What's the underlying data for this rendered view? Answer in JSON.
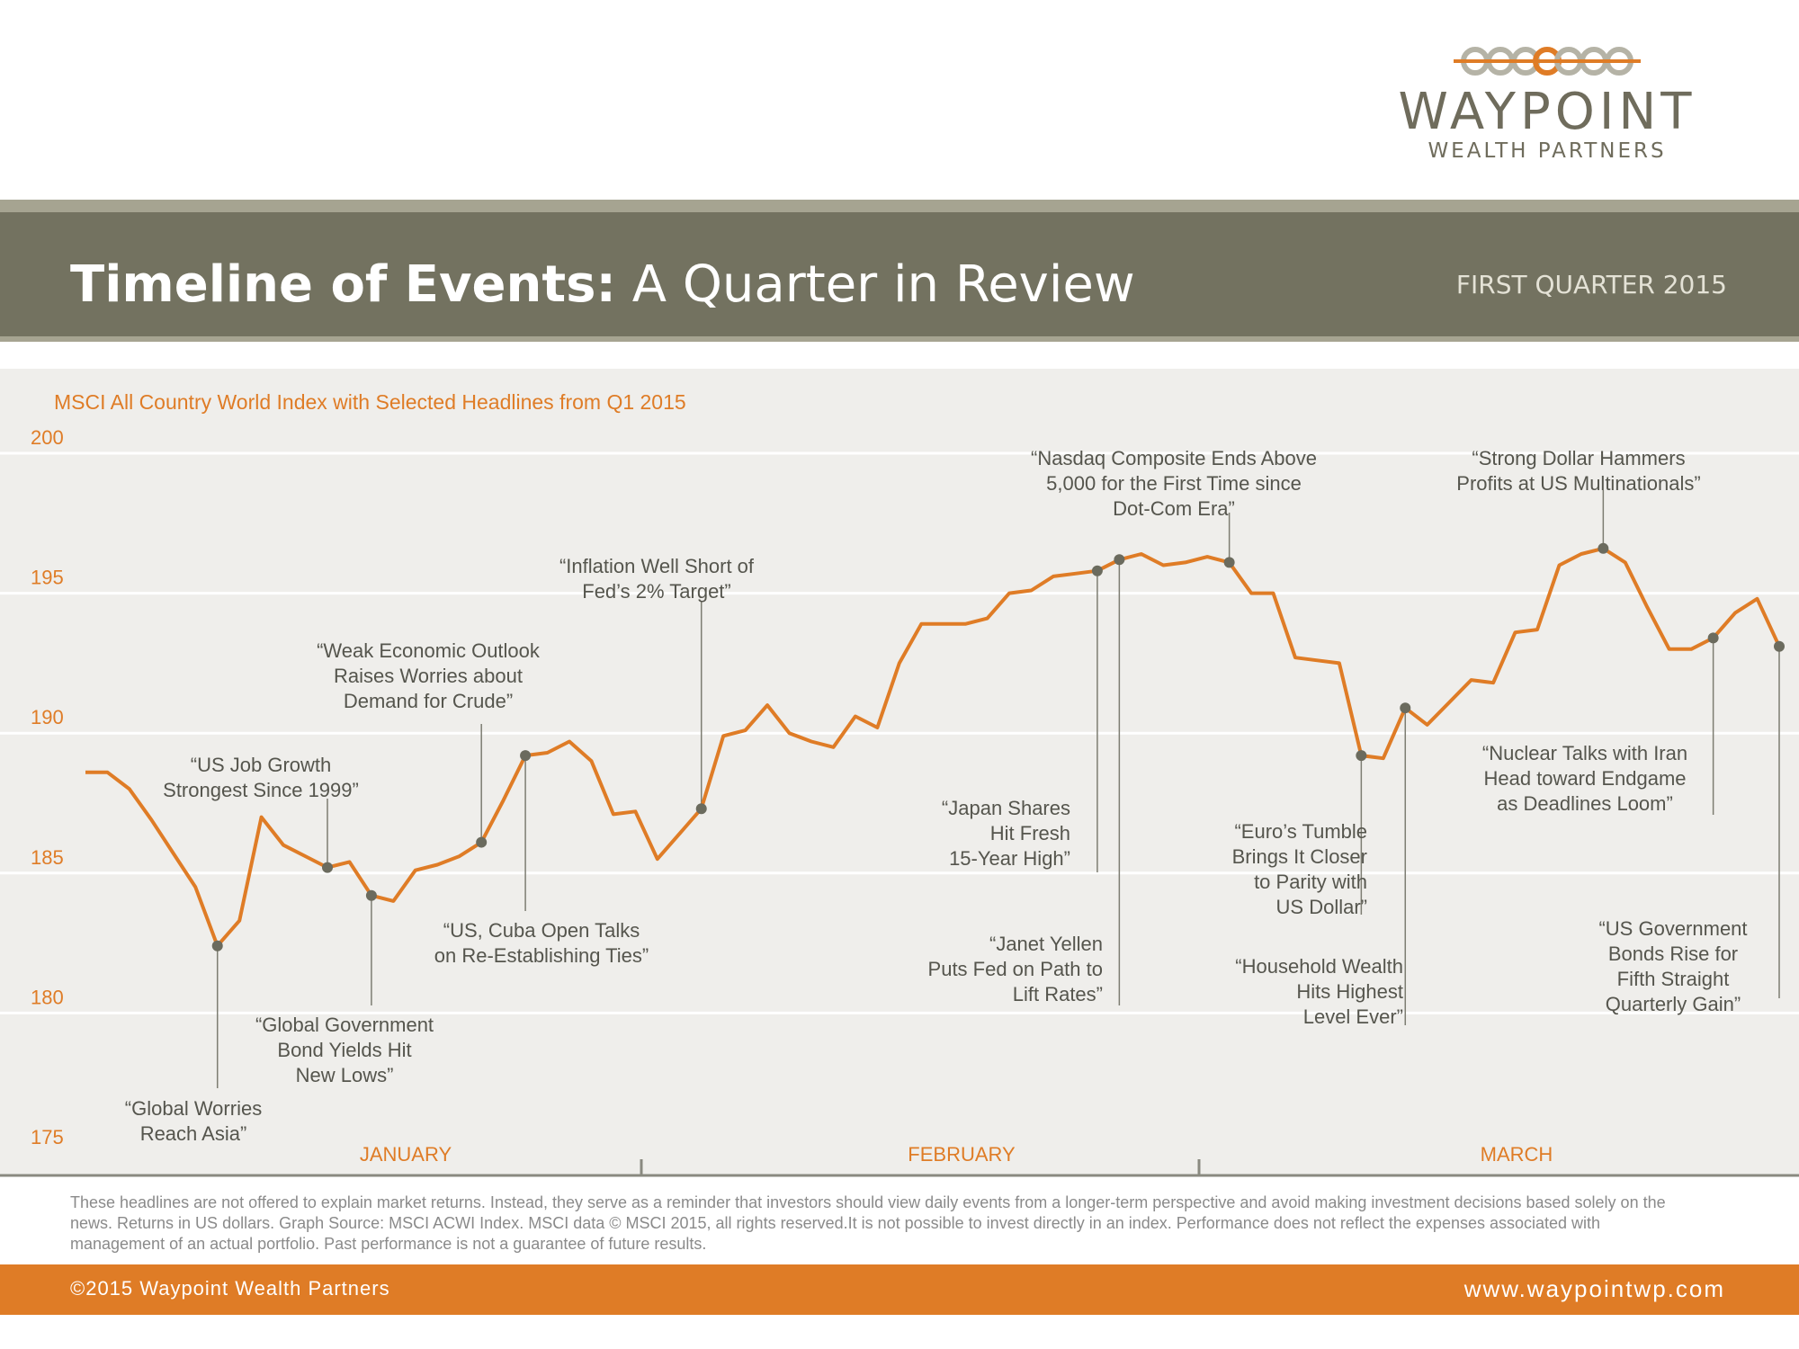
{
  "logo": {
    "name": "WAYPOINT",
    "subtitle": "WEALTH PARTNERS"
  },
  "header": {
    "title_bold": "Timeline of Events:",
    "title_light": "A Quarter in Review",
    "period": "FIRST QUARTER 2015"
  },
  "colors": {
    "accent": "#df7c26",
    "title_bar": "#737260",
    "line": "#df7c26",
    "marker": "#6b6b5e",
    "chart_background": "#efeeeb"
  },
  "chart_data": {
    "type": "line",
    "title": "MSCI All Country World Index with Selected Headlines from Q1 2015",
    "xlabel": "",
    "ylabel": "",
    "ylim": [
      175,
      200
    ],
    "yticks": [
      200,
      195,
      190,
      185,
      180,
      175
    ],
    "grid": true,
    "months": [
      "JANUARY",
      "FEBRUARY",
      "MARCH"
    ],
    "series": [
      {
        "values": [
          188.6,
          188.6,
          188.0,
          186.9,
          185.7,
          184.5,
          182.4,
          183.3,
          187.0,
          186.0,
          185.6,
          185.2,
          185.4,
          184.2,
          184.0,
          185.1,
          185.3,
          185.6,
          186.1,
          187.6,
          189.2,
          189.3,
          189.7,
          189.0,
          187.1,
          187.2,
          185.5,
          186.4,
          187.3,
          189.9,
          190.1,
          191.0,
          190.0,
          189.7,
          189.5,
          190.6,
          190.2,
          192.5,
          193.9,
          193.9,
          193.9,
          194.1,
          195.0,
          195.1,
          195.6,
          195.7,
          195.8,
          196.2,
          196.4,
          196.0,
          196.1,
          196.3,
          196.1,
          195.0,
          195.0,
          192.7,
          192.6,
          192.5,
          189.2,
          189.1,
          190.9,
          190.3,
          191.1,
          191.9,
          191.8,
          193.6,
          193.7,
          196.0,
          196.4,
          196.6,
          196.1,
          194.5,
          193.0,
          193.0,
          193.4,
          194.3,
          194.8,
          193.1
        ]
      }
    ],
    "headlines": [
      {
        "index": 6,
        "text": [
          "“Global Worries",
          "Reach Asia”"
        ]
      },
      {
        "index": 11,
        "text": [
          "“US Job Growth",
          "Strongest Since 1999”"
        ]
      },
      {
        "index": 13,
        "text": [
          "“Global Government",
          "Bond Yields Hit",
          "New Lows”"
        ]
      },
      {
        "index": 18,
        "text": [
          "“Weak Economic Outlook",
          "Raises Worries about",
          "Demand for Crude”"
        ]
      },
      {
        "index": 20,
        "text": [
          "“US, Cuba Open Talks",
          "on Re-Establishing Ties”"
        ]
      },
      {
        "index": 28,
        "text": [
          "“Inflation Well Short of",
          "Fed’s 2% Target”"
        ]
      },
      {
        "index": 46,
        "text": [
          "“Japan Shares",
          "Hit Fresh",
          "15-Year High”"
        ]
      },
      {
        "index": 47,
        "text": [
          "“Janet Yellen",
          "Puts Fed on Path to",
          "Lift Rates”"
        ]
      },
      {
        "index": 52,
        "text": [
          "“Nasdaq Composite Ends Above",
          "5,000 for the First Time since",
          "Dot-Com Era”"
        ]
      },
      {
        "index": 58,
        "text": [
          "“Euro’s Tumble",
          "Brings It Closer",
          "to Parity with",
          "US Dollar”"
        ]
      },
      {
        "index": 60,
        "text": [
          "“Household Wealth",
          "Hits Highest",
          "Level Ever”"
        ]
      },
      {
        "index": 69,
        "text": [
          "“Strong Dollar Hammers",
          "Profits at US Multinationals”"
        ]
      },
      {
        "index": 74,
        "text": [
          "“Nuclear Talks with Iran",
          "Head toward Endgame",
          "as Deadlines Loom”"
        ]
      },
      {
        "index": 77,
        "text": [
          "“US Government",
          "Bonds Rise for",
          "Fifth Straight",
          "Quarterly Gain”"
        ]
      }
    ]
  },
  "disclaimer": "These headlines are not offered to explain market returns. Instead, they serve as a reminder that investors should view daily events from a longer-term perspective and avoid making investment decisions based solely on the news. Returns in US dollars. Graph Source: MSCI ACWI Index. MSCI data © MSCI 2015, all rights reserved.It is not possible to invest directly in an index. Performance does not reflect the expenses associated with management of an actual portfolio. Past performance is not a guarantee of future results.",
  "footer": {
    "copyright": "©2015 Waypoint Wealth Partners",
    "url": "www.waypointwp.com"
  }
}
